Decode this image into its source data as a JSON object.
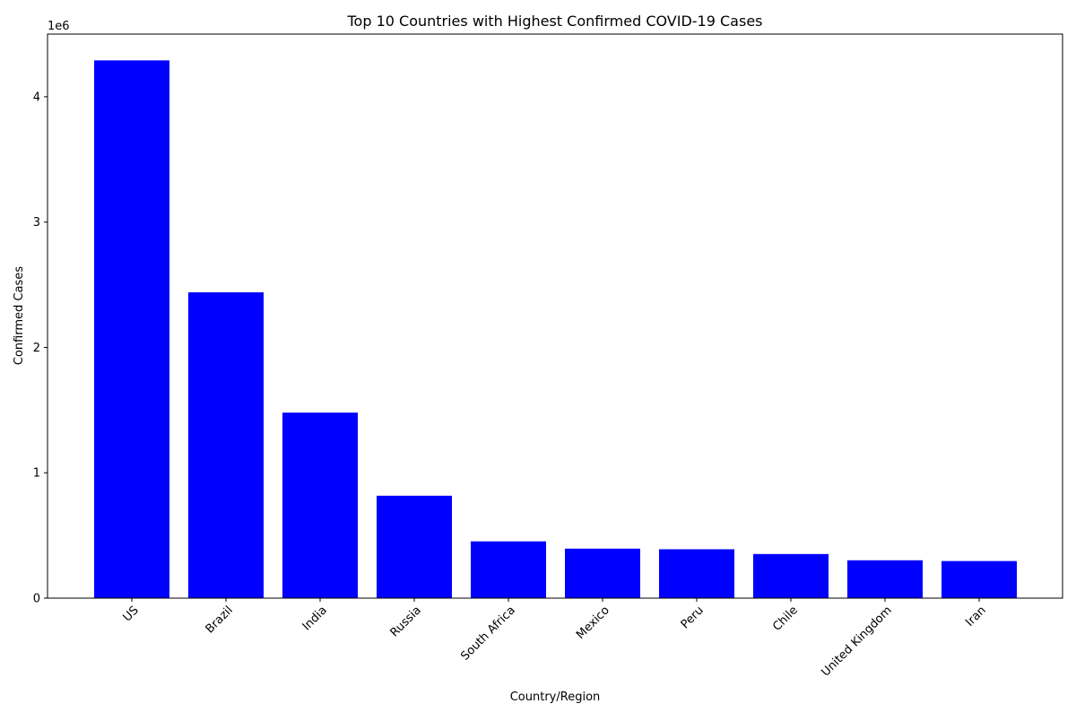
{
  "chart_data": {
    "type": "bar",
    "title": "Top 10 Countries with Highest Confirmed COVID-19 Cases",
    "xlabel": "Country/Region",
    "ylabel": "Confirmed Cases",
    "y_offset_label": "1e6",
    "categories": [
      "US",
      "Brazil",
      "India",
      "Russia",
      "South Africa",
      "Mexico",
      "Peru",
      "Chile",
      "United Kingdom",
      "Iran"
    ],
    "values": [
      4290000,
      2440000,
      1480000,
      817000,
      453000,
      395000,
      390000,
      352000,
      302000,
      296000
    ],
    "ylim": [
      0,
      4500000
    ],
    "y_ticks": [
      0,
      1000000,
      2000000,
      3000000,
      4000000
    ],
    "y_tick_labels": [
      "0",
      "1",
      "2",
      "3",
      "4"
    ],
    "bar_color": "#0000ff",
    "grid": false,
    "x_tick_rotation_deg": 45
  }
}
